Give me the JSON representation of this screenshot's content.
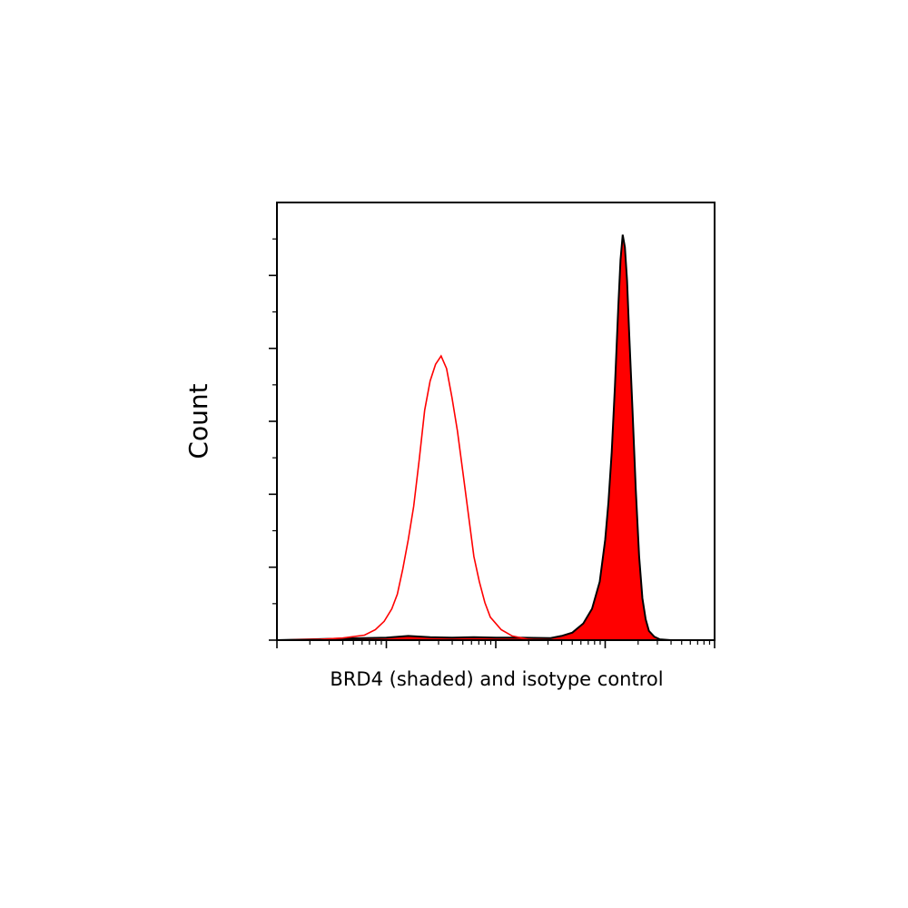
{
  "chart_data": {
    "type": "area",
    "title": "",
    "xlabel": "BRD4 (shaded) and isotype control",
    "ylabel": "Count",
    "x_scale": "log",
    "x_decades": 4,
    "ylim": [
      0,
      1
    ],
    "grid": false,
    "legend": "none",
    "series": [
      {
        "style": "filled",
        "color": "#ff0000",
        "outline_color": "#000000",
        "points": [
          [
            0.0,
            0.0
          ],
          [
            0.3,
            0.002
          ],
          [
            0.8,
            0.005
          ],
          [
            1.0,
            0.006
          ],
          [
            1.2,
            0.01
          ],
          [
            1.4,
            0.007
          ],
          [
            1.6,
            0.006
          ],
          [
            1.8,
            0.007
          ],
          [
            2.0,
            0.006
          ],
          [
            2.2,
            0.006
          ],
          [
            2.5,
            0.005
          ],
          [
            2.6,
            0.01
          ],
          [
            2.7,
            0.018
          ],
          [
            2.8,
            0.04
          ],
          [
            2.88,
            0.075
          ],
          [
            2.95,
            0.14
          ],
          [
            3.0,
            0.24
          ],
          [
            3.03,
            0.33
          ],
          [
            3.06,
            0.45
          ],
          [
            3.09,
            0.61
          ],
          [
            3.12,
            0.8
          ],
          [
            3.14,
            0.91
          ],
          [
            3.16,
            0.97
          ],
          [
            3.18,
            0.94
          ],
          [
            3.2,
            0.86
          ],
          [
            3.22,
            0.73
          ],
          [
            3.25,
            0.55
          ],
          [
            3.28,
            0.36
          ],
          [
            3.31,
            0.2
          ],
          [
            3.34,
            0.1
          ],
          [
            3.37,
            0.05
          ],
          [
            3.4,
            0.022
          ],
          [
            3.45,
            0.008
          ],
          [
            3.5,
            0.002
          ],
          [
            3.6,
            0.0
          ],
          [
            4.0,
            0.0
          ]
        ]
      },
      {
        "style": "outline",
        "color": "#ff0000",
        "points": [
          [
            0.0,
            0.0
          ],
          [
            0.4,
            0.002
          ],
          [
            0.6,
            0.005
          ],
          [
            0.8,
            0.012
          ],
          [
            0.9,
            0.025
          ],
          [
            0.98,
            0.045
          ],
          [
            1.05,
            0.075
          ],
          [
            1.1,
            0.11
          ],
          [
            1.15,
            0.17
          ],
          [
            1.2,
            0.24
          ],
          [
            1.25,
            0.32
          ],
          [
            1.3,
            0.43
          ],
          [
            1.35,
            0.55
          ],
          [
            1.4,
            0.62
          ],
          [
            1.45,
            0.66
          ],
          [
            1.5,
            0.68
          ],
          [
            1.55,
            0.65
          ],
          [
            1.6,
            0.58
          ],
          [
            1.65,
            0.5
          ],
          [
            1.7,
            0.4
          ],
          [
            1.75,
            0.3
          ],
          [
            1.8,
            0.2
          ],
          [
            1.85,
            0.14
          ],
          [
            1.9,
            0.09
          ],
          [
            1.95,
            0.055
          ],
          [
            2.05,
            0.025
          ],
          [
            2.15,
            0.01
          ],
          [
            2.3,
            0.002
          ],
          [
            2.5,
            0.0
          ],
          [
            4.0,
            0.0
          ]
        ]
      }
    ]
  }
}
